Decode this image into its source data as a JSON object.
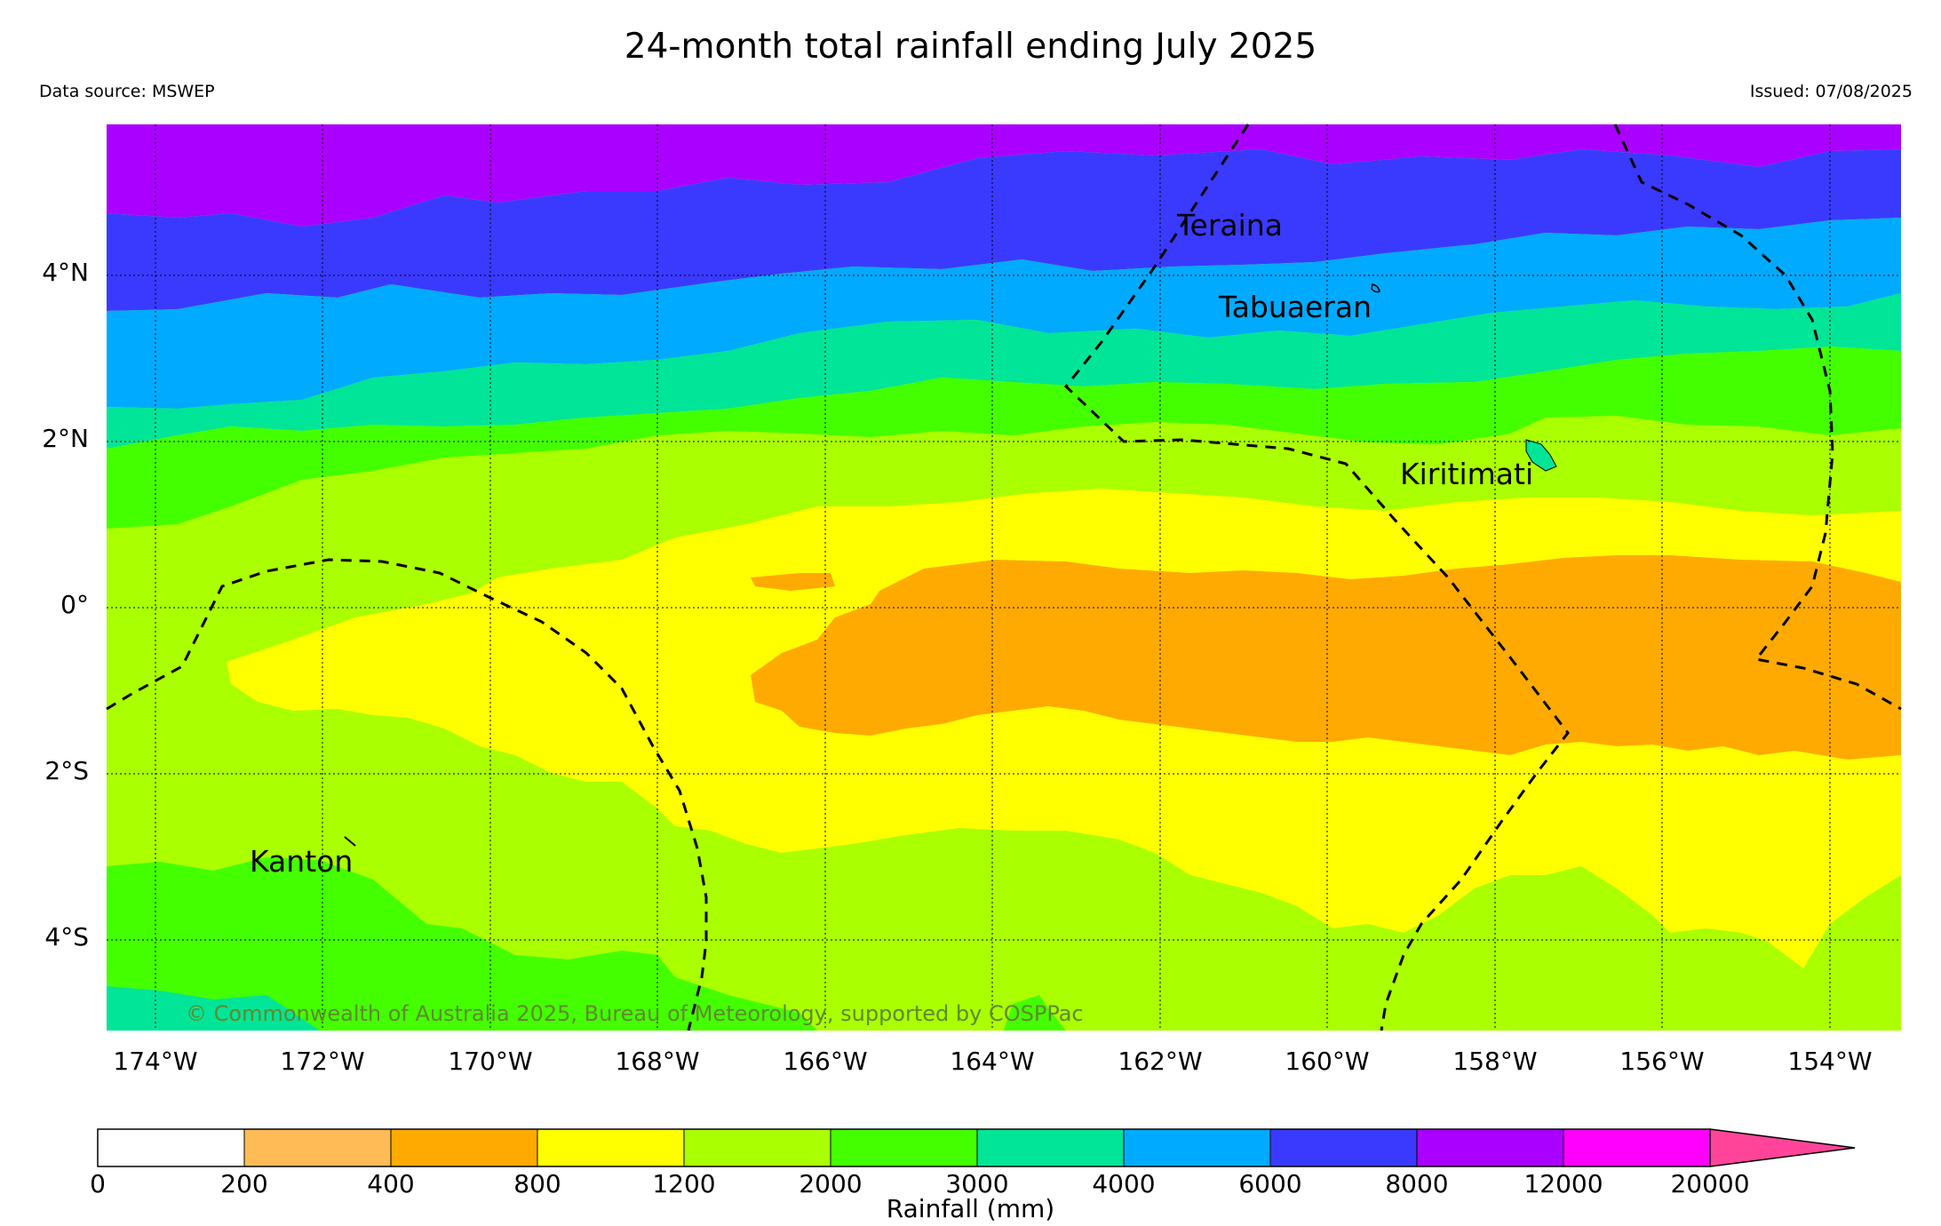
{
  "title": "24-month total rainfall ending July 2025",
  "data_source": "Data source: MSWEP",
  "issued": "Issued: 07/08/2025",
  "copyright": "© Commonwealth of Australia 2025, Bureau of Meteorology, supported by COSPPac",
  "map": {
    "lat_labels": [
      "4°N",
      "2°N",
      "0°",
      "2°S",
      "4°S"
    ],
    "lon_labels": [
      "174°W",
      "172°W",
      "170°W",
      "168°W",
      "166°W",
      "164°W",
      "162°W",
      "160°W",
      "158°W",
      "156°W",
      "154°W"
    ],
    "places": [
      {
        "name": "Teraina"
      },
      {
        "name": "Tabuaeran"
      },
      {
        "name": "Kiritimati"
      },
      {
        "name": "Kanton"
      }
    ]
  },
  "colorbar": {
    "title": "Rainfall (mm)",
    "ticks": [
      "0",
      "200",
      "400",
      "800",
      "1200",
      "2000",
      "3000",
      "4000",
      "6000",
      "8000",
      "12000",
      "20000"
    ],
    "colors": [
      "#ffffff",
      "#ffbb55",
      "#ffaa00",
      "#ffff00",
      "#aaff00",
      "#44ff00",
      "#00e597",
      "#00aaff",
      "#3a3aff",
      "#aa00ff",
      "#ff00ff",
      "#ff4499"
    ]
  }
}
